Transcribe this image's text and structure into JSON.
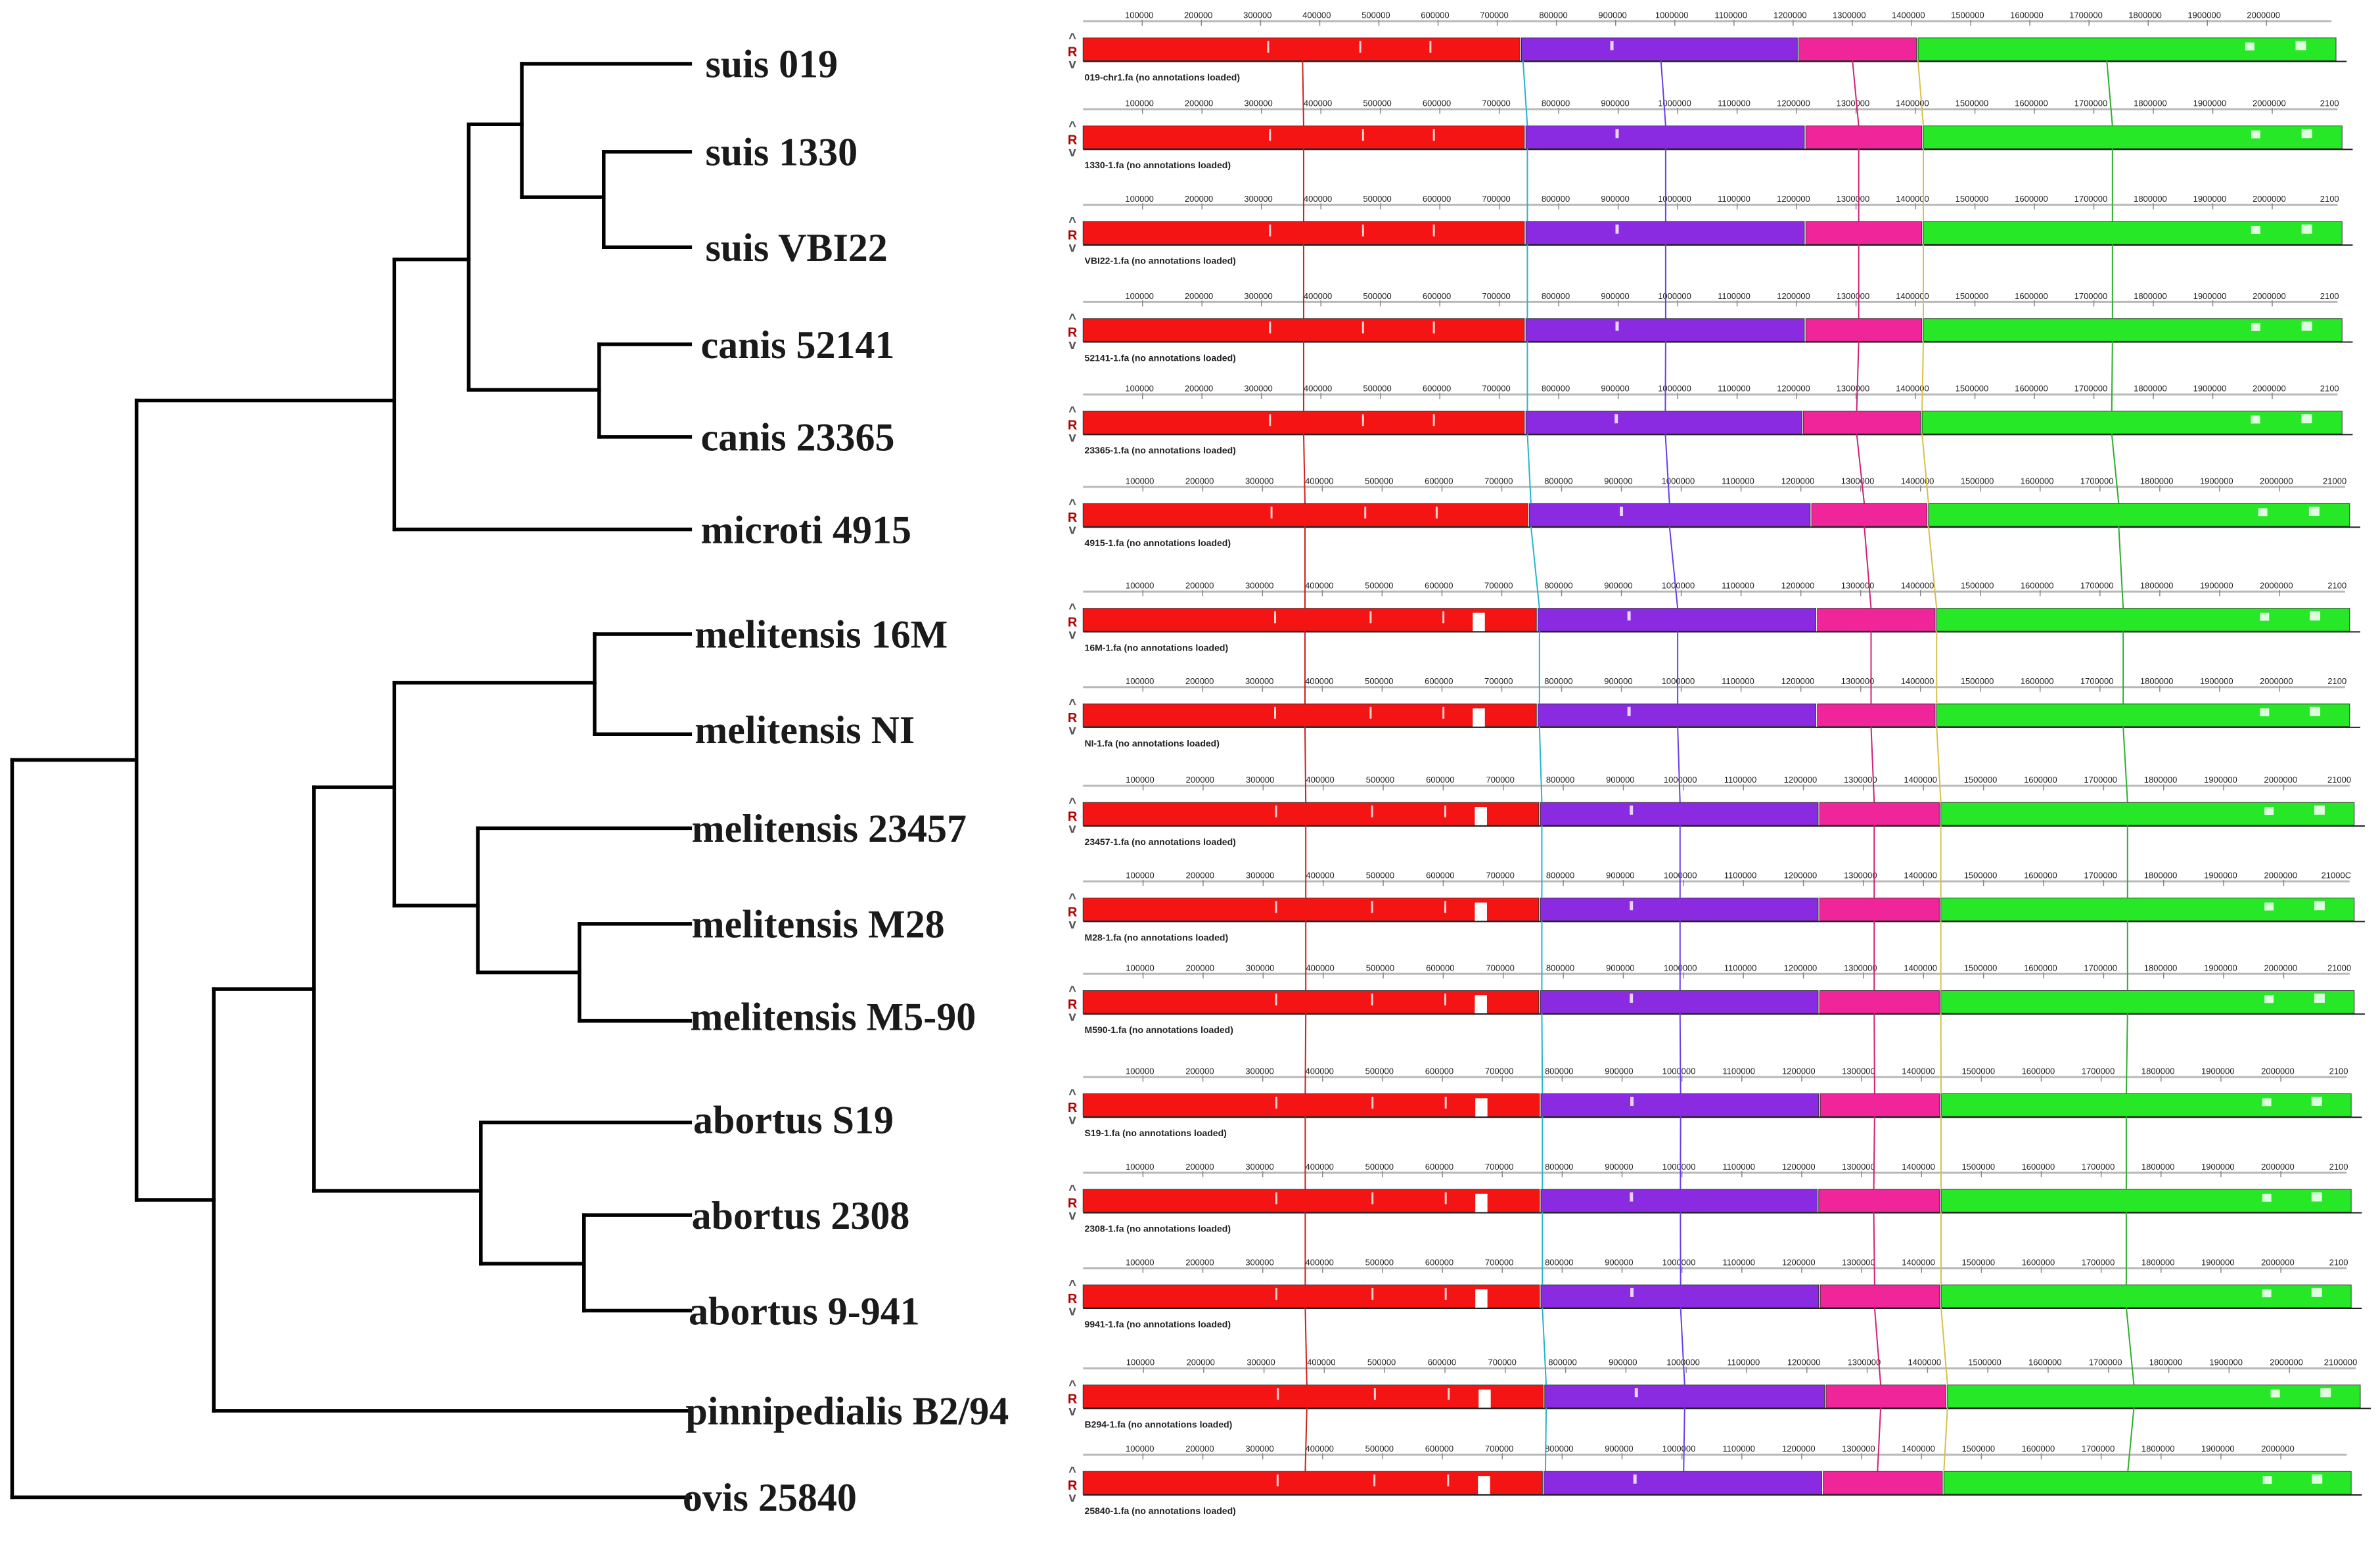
{
  "colors": {
    "tree": "#000000",
    "red": "#f41414",
    "purple": "#8a2be2",
    "pink": "#f0259a",
    "green": "#26e826",
    "ruler": "#b8b8b8",
    "control": "#b00000"
  },
  "ticks": [
    "100000",
    "200000",
    "300000",
    "400000",
    "500000",
    "600000",
    "700000",
    "800000",
    "900000",
    "1000000",
    "1100000",
    "1200000",
    "1300000",
    "1400000",
    "1500000",
    "1600000",
    "1700000",
    "1800000",
    "1900000",
    "2000000"
  ],
  "genome_control": {
    "up": "^",
    "label": "R",
    "down": "v"
  },
  "rows": [
    {
      "label": "suis 019",
      "end_tick": "",
      "caption": "019-chr1.fa (no annotations loaded)",
      "breaks": [
        0.3495,
        0.5706,
        0.6656
      ]
    },
    {
      "label": "suis 1330",
      "end_tick": "2100",
      "caption": "1330-1.fa (no annotations loaded)",
      "breaks": [
        0.3513,
        0.5734,
        0.6666
      ]
    },
    {
      "label": "suis VBI22",
      "end_tick": "2100",
      "caption": "VBI22-1.fa (no annotations loaded)",
      "breaks": [
        0.3513,
        0.5734,
        0.6666
      ]
    },
    {
      "label": "canis 52141",
      "end_tick": "2100",
      "caption": "52141-1.fa (no annotations loaded)",
      "breaks": [
        0.3513,
        0.5734,
        0.6666
      ]
    },
    {
      "label": "canis 23365",
      "end_tick": "2100",
      "caption": "23365-1.fa (no annotations loaded)",
      "breaks": [
        0.3513,
        0.5713,
        0.6656
      ]
    },
    {
      "label": "microti 4915",
      "end_tick": "21000",
      "caption": "4915-1.fa (no annotations loaded)",
      "breaks": [
        0.352,
        0.5746,
        0.6667
      ]
    },
    {
      "label": "melitensis 16M",
      "end_tick": "2100",
      "caption": "16M-1.fa (no annotations loaded)",
      "breaks": [
        0.3587,
        0.5791,
        0.6731
      ]
    },
    {
      "label": "melitensis NI",
      "end_tick": "2100",
      "caption": "NI-1.fa (no annotations loaded)",
      "breaks": [
        0.3587,
        0.5791,
        0.6731
      ]
    },
    {
      "label": "melitensis 23457",
      "end_tick": "21000",
      "caption": "23457-1.fa (no annotations loaded)",
      "breaks": [
        0.3593,
        0.5788,
        0.674
      ]
    },
    {
      "label": "melitensis M28",
      "end_tick": "21000C",
      "caption": "M28-1.fa (no annotations loaded)",
      "breaks": [
        0.3593,
        0.5788,
        0.674
      ]
    },
    {
      "label": "melitensis M5-90",
      "end_tick": "21000",
      "caption": "M590-1.fa (no annotations loaded)",
      "breaks": [
        0.3593,
        0.5788,
        0.674
      ]
    },
    {
      "label": "abortus S19",
      "end_tick": "2100",
      "caption": "S19-1.fa (no annotations loaded)",
      "breaks": [
        0.3606,
        0.5806,
        0.6758
      ]
    },
    {
      "label": "abortus 2308",
      "end_tick": "2100",
      "caption": "2308-1.fa (no annotations loaded)",
      "breaks": [
        0.3606,
        0.5794,
        0.6758
      ]
    },
    {
      "label": "abortus 9-941",
      "end_tick": "2100",
      "caption": "9941-1.fa (no annotations loaded)",
      "breaks": [
        0.3606,
        0.5806,
        0.6758
      ]
    },
    {
      "label": "pinnipedialis B2/94",
      "end_tick": "2100000",
      "caption": "B294-1.fa (no annotations loaded)",
      "breaks": [
        0.361,
        0.581,
        0.676
      ]
    },
    {
      "label": "ovis 25840",
      "end_tick": "",
      "caption": "25840-1.fa (no annotations loaded)",
      "breaks": [
        0.363,
        0.583,
        0.678
      ]
    }
  ]
}
